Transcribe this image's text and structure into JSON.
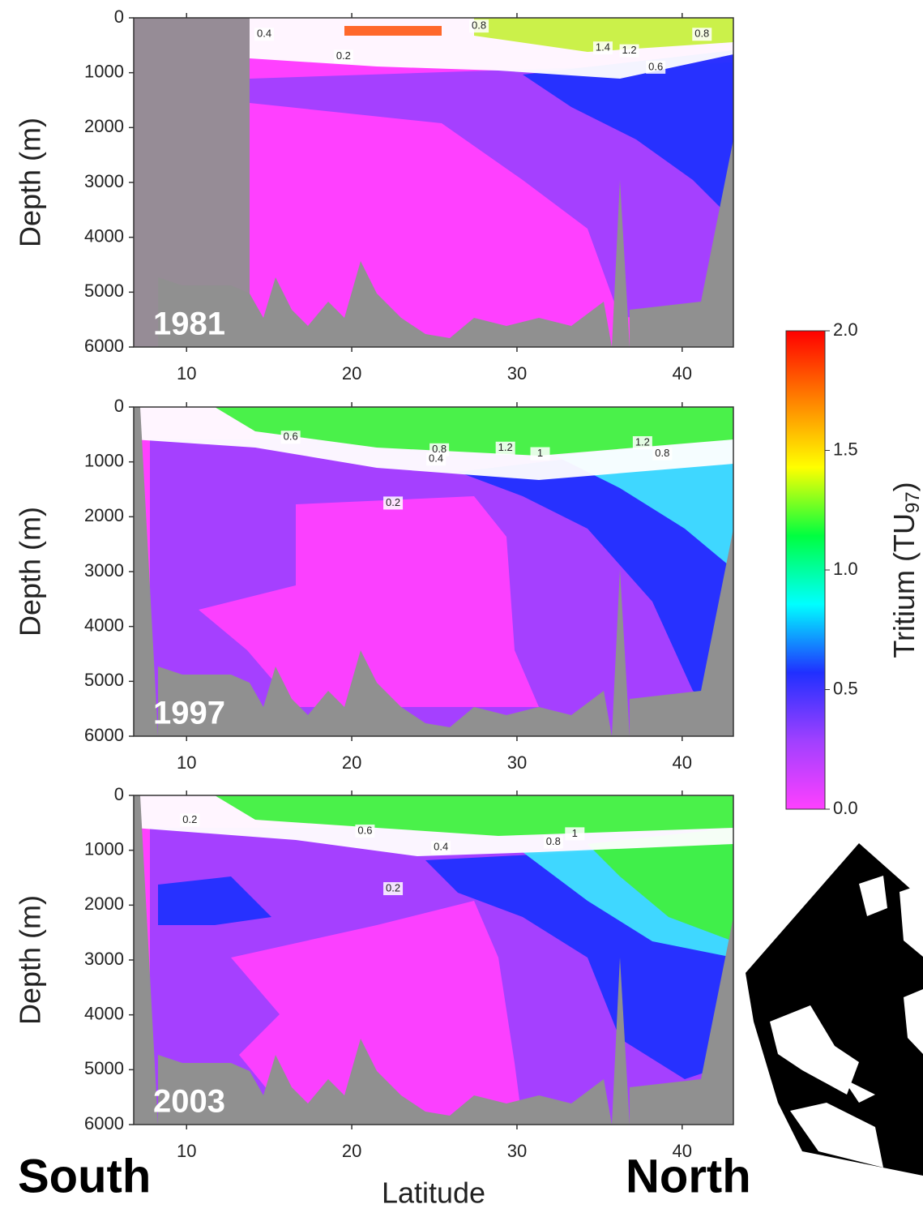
{
  "chart_data": [
    {
      "type": "contour",
      "annotation": "1981",
      "ylabel": "Depth (m)",
      "xlim": [
        6.8,
        43.1
      ],
      "ylim": [
        0,
        6000
      ],
      "y_inverted": true,
      "xticks": [
        10,
        20,
        30,
        40
      ],
      "yticks": [
        0,
        1000,
        2000,
        3000,
        4000,
        5000,
        6000
      ],
      "contour_labels": [
        {
          "x": 14.7,
          "y": 300,
          "value": 0.4
        },
        {
          "x": 19.5,
          "y": 700,
          "value": 0.2
        },
        {
          "x": 27.7,
          "y": 150,
          "value": 0.8
        },
        {
          "x": 35.2,
          "y": 550,
          "value": 1.4
        },
        {
          "x": 36.8,
          "y": 600,
          "value": 1.2
        },
        {
          "x": 38.4,
          "y": 900,
          "value": 0.6
        },
        {
          "x": 41.2,
          "y": 300,
          "value": 0.8
        }
      ]
    },
    {
      "type": "contour",
      "annotation": "1997",
      "ylabel": "Depth (m)",
      "xlim": [
        6.8,
        43.1
      ],
      "ylim": [
        0,
        6000
      ],
      "y_inverted": true,
      "xticks": [
        10,
        20,
        30,
        40
      ],
      "yticks": [
        0,
        1000,
        2000,
        3000,
        4000,
        5000,
        6000
      ],
      "contour_labels": [
        {
          "x": 16.3,
          "y": 550,
          "value": 0.6
        },
        {
          "x": 25.3,
          "y": 780,
          "value": 0.8
        },
        {
          "x": 25.1,
          "y": 950,
          "value": 0.4
        },
        {
          "x": 29.3,
          "y": 750,
          "value": 1.2
        },
        {
          "x": 31.4,
          "y": 850,
          "value": 1
        },
        {
          "x": 37.6,
          "y": 650,
          "value": 1.2
        },
        {
          "x": 38.8,
          "y": 850,
          "value": 0.8
        },
        {
          "x": 22.5,
          "y": 1750,
          "value": 0.2
        }
      ]
    },
    {
      "type": "contour",
      "annotation": "2003",
      "ylabel": "Depth (m)",
      "xlabel": "Latitude",
      "xlim": [
        6.8,
        43.1
      ],
      "ylim": [
        0,
        6000
      ],
      "y_inverted": true,
      "xticks": [
        10,
        20,
        30,
        40
      ],
      "yticks": [
        0,
        1000,
        2000,
        3000,
        4000,
        5000,
        6000
      ],
      "contour_labels": [
        {
          "x": 10.2,
          "y": 450,
          "value": 0.2
        },
        {
          "x": 20.8,
          "y": 650,
          "value": 0.6
        },
        {
          "x": 25.4,
          "y": 950,
          "value": 0.4
        },
        {
          "x": 32.2,
          "y": 850,
          "value": 0.8
        },
        {
          "x": 33.5,
          "y": 700,
          "value": 1
        },
        {
          "x": 22.5,
          "y": 1700,
          "value": 0.2
        }
      ]
    },
    {
      "type": "colorbar",
      "ylabel": "Tritium (TU",
      "ylabel_sub": "97",
      "ylabel_end": ")",
      "ylim": [
        0,
        2
      ],
      "yticks": [
        {
          "value": 0,
          "label": "0.0"
        },
        {
          "value": 0.5,
          "label": "0.5"
        },
        {
          "value": 1,
          "label": "1.0"
        },
        {
          "value": 1.5,
          "label": "1.5"
        },
        {
          "value": 2,
          "label": "2.0"
        }
      ],
      "colors": [
        "#ff40ff",
        "#a040ff",
        "#2030ff",
        "#00ffff",
        "#00ff40",
        "#ffff00",
        "#ff8000",
        "#ff0000"
      ]
    }
  ],
  "footer": {
    "left": "South",
    "right": "North"
  }
}
